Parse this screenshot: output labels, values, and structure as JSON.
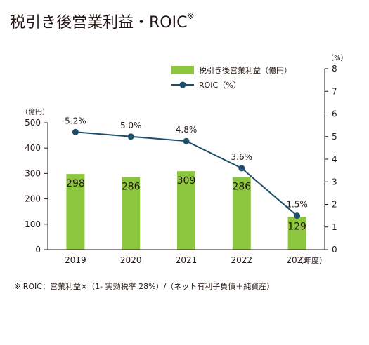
{
  "title": "税引き後営業利益・ROIC",
  "title_mark": "※",
  "footnote": "※ ROIC：営業利益×（1- 実効税率 28%）/（ネット有利子負債＋純資産）",
  "chart_data": {
    "type": "bar+line",
    "categories": [
      "2019",
      "2020",
      "2021",
      "2022",
      "2023"
    ],
    "x_unit": "（年度）",
    "left_axis": {
      "unit": "（億円）",
      "range": [
        0,
        500
      ],
      "ticks": [
        0,
        100,
        200,
        300,
        400,
        500
      ]
    },
    "right_axis": {
      "unit": "（%）",
      "range": [
        0,
        8
      ],
      "ticks": [
        0,
        1,
        2,
        3,
        4,
        5,
        6,
        7,
        8
      ]
    },
    "series": [
      {
        "name": "税引き後営業利益（億円）",
        "type": "bar",
        "axis": "left",
        "color": "#8cc63f",
        "values": [
          298,
          286,
          309,
          286,
          129
        ],
        "labels": [
          "298",
          "286",
          "309",
          "286",
          "129"
        ]
      },
      {
        "name": "ROIC（%）",
        "type": "line",
        "axis": "right",
        "color": "#1f4e6b",
        "values": [
          5.2,
          5.0,
          4.8,
          3.6,
          1.5
        ],
        "labels": [
          "5.2%",
          "5.0%",
          "4.8%",
          "3.6%",
          "1.5%"
        ]
      }
    ],
    "legend_position": "top-right",
    "grid": false
  }
}
